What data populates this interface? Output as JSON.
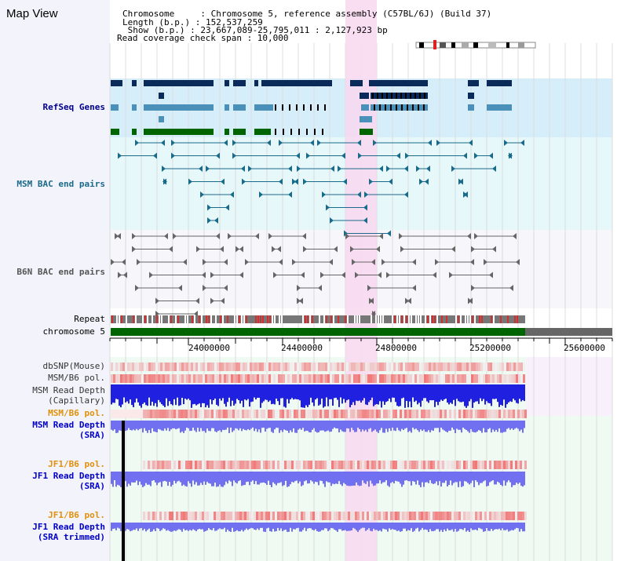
{
  "app": {
    "title": "Map View"
  },
  "header": {
    "chromosome": "Chromosome     : Chromosome 5, reference assembly (C57BL/6J) (Build 37)",
    "length": "Length (b.p.) : 152,537,259",
    "show": " Show (b.p.) : 23,667,089-25,795,011 : 2,127,923 bp",
    "coverage": "Read coverage check span : 10,000"
  },
  "tracks": {
    "refseq": "RefSeq Genes",
    "msm_bac": "MSM BAC end pairs",
    "b6n_bac": "B6N BAC end pairs",
    "repeat": "Repeat",
    "chromosome": "chromosome 5",
    "dbsnp": "dbSNP(Mouse)",
    "msm_b6_pol_1": "MSM/B6 pol.",
    "msm_read_depth_cap_1": "MSM Read Depth",
    "msm_read_depth_cap_2": "(Capillary)",
    "msm_b6_pol_2": "MSM/B6 pol.",
    "msm_read_depth_sra_1": "MSM Read Depth",
    "msm_read_depth_sra_2": "(SRA)",
    "jf1_b6_pol_1": "JF1/B6 pol.",
    "jf1_read_depth_sra_1": "JF1 Read Depth",
    "jf1_read_depth_sra_2": "(SRA)",
    "jf1_b6_pol_2": "JF1/B6 pol.",
    "jf1_read_depth_trim_1": "JF1 Read Depth",
    "jf1_read_depth_trim_2": "(SRA trimmed)"
  },
  "axis": {
    "ticks": [
      "24000000",
      "24400000",
      "24800000",
      "25200000",
      "25600000"
    ]
  },
  "colors": {
    "gene_dark": "#0a2a5a",
    "gene_mid": "#4a90b8",
    "gene_green": "#006400",
    "bac_msm": "#1a6a8a",
    "bac_b6n": "#666666",
    "highlight": "#f8d8f0",
    "chromosome_bar": "#006400",
    "depth_blue": "#2020e0",
    "depth_sra": "#7070f0",
    "pol_red": "#f04040"
  }
}
